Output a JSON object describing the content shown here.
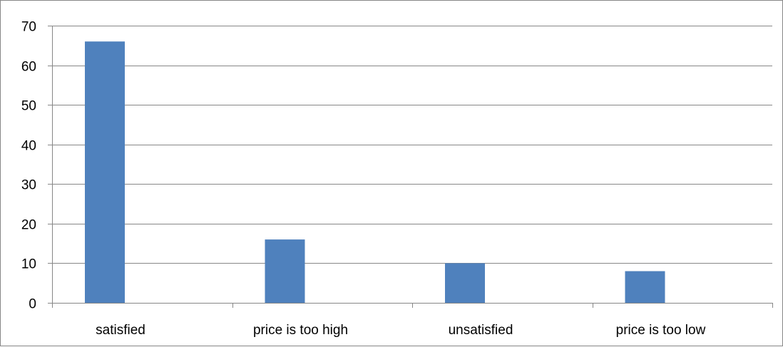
{
  "chart_data": {
    "type": "bar",
    "categories": [
      "satisfied",
      "price is too high",
      "unsatisfied",
      "price is too low"
    ],
    "series": [
      {
        "values": [
          66,
          16,
          10,
          8
        ],
        "color": "#4f81bd"
      }
    ],
    "ylim": [
      0,
      70
    ],
    "yticks": [
      0,
      10,
      20,
      30,
      40,
      50,
      60,
      70
    ],
    "ytick_labels": [
      "0",
      "10",
      "20",
      "30",
      "40",
      "50",
      "60",
      "70"
    ],
    "grid": true,
    "legend": "none",
    "gridline_color": "#878787",
    "axis_color": "#878787"
  }
}
